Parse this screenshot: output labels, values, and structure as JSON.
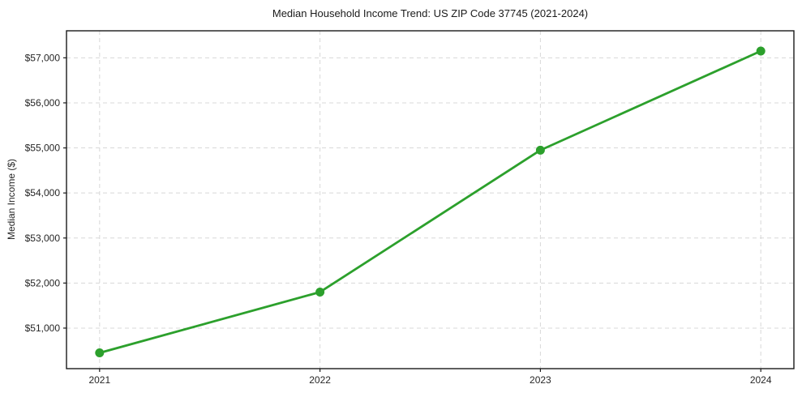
{
  "chart_data": {
    "type": "line",
    "title": "Median Household Income Trend: US ZIP Code 37745 (2021-2024)",
    "xlabel": "",
    "ylabel": "Median Income ($)",
    "x": [
      "2021",
      "2022",
      "2023",
      "2024"
    ],
    "series": [
      {
        "name": "Median Household Income",
        "values": [
          50450,
          51800,
          54950,
          57150
        ]
      }
    ],
    "ylim": [
      50100,
      57600
    ],
    "yticks": [
      51000,
      52000,
      53000,
      54000,
      55000,
      56000,
      57000
    ],
    "ytick_labels": [
      "$51,000",
      "$52,000",
      "$53,000",
      "$54,000",
      "$55,000",
      "$56,000",
      "$57,000"
    ],
    "grid": true,
    "grid_style": "dashed",
    "legend": false,
    "colors": {
      "line": "#2ca02c",
      "marker": "#2ca02c",
      "grid": "#d8d8d8",
      "spine": "#1a1a1a",
      "text": "#262626",
      "background": "#ffffff"
    }
  }
}
